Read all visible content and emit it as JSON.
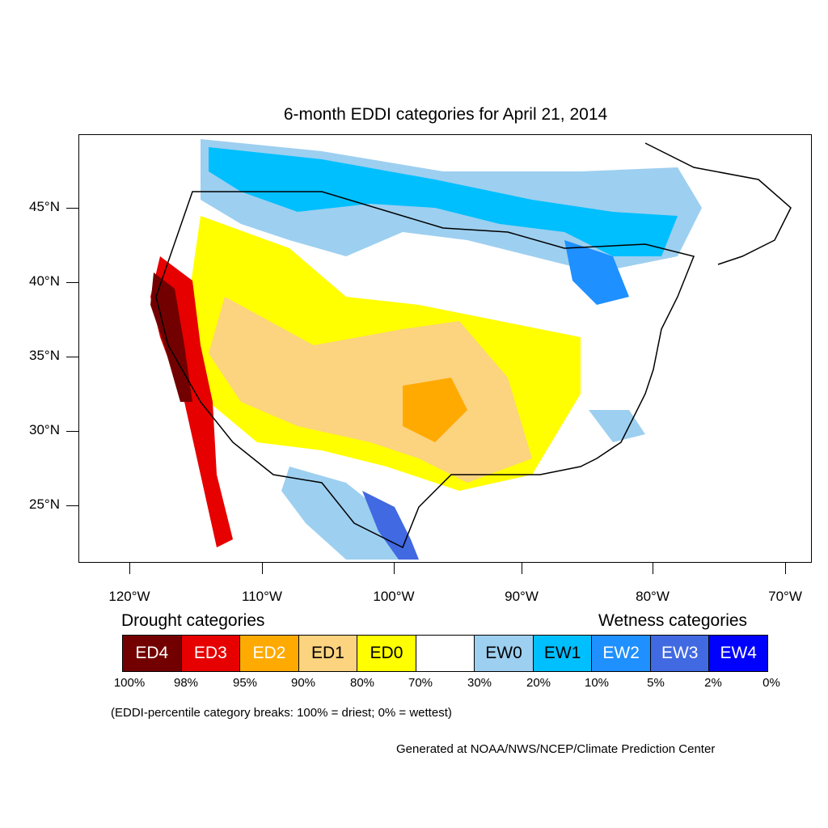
{
  "title": "6-month EDDI categories for April 21, 2014",
  "map": {
    "lat_labels": [
      "45°N",
      "40°N",
      "35°N",
      "30°N",
      "25°N"
    ],
    "lon_labels": [
      "120°W",
      "110°W",
      "100°W",
      "90°W",
      "80°W",
      "70°W"
    ]
  },
  "legend": {
    "drought_heading": "Drought categories",
    "wetness_heading": "Wetness categories",
    "categories": [
      {
        "label": "ED4",
        "color": "#730000",
        "text_color": "#ffffff"
      },
      {
        "label": "ED3",
        "color": "#e60000",
        "text_color": "#ffffff"
      },
      {
        "label": "ED2",
        "color": "#ffaa00",
        "text_color": "#ffffff"
      },
      {
        "label": "ED1",
        "color": "#fcd37f",
        "text_color": "#000000"
      },
      {
        "label": "ED0",
        "color": "#ffff00",
        "text_color": "#000000"
      },
      {
        "label": "",
        "color": "#ffffff",
        "text_color": "#000000"
      },
      {
        "label": "EW0",
        "color": "#9dcff0",
        "text_color": "#000000"
      },
      {
        "label": "EW1",
        "color": "#00bfff",
        "text_color": "#000000"
      },
      {
        "label": "EW2",
        "color": "#1e90ff",
        "text_color": "#ffffff"
      },
      {
        "label": "EW3",
        "color": "#4169e1",
        "text_color": "#ffffff"
      },
      {
        "label": "EW4",
        "color": "#0000ff",
        "text_color": "#ffffff"
      }
    ],
    "percent_breaks": [
      "100%",
      "98%",
      "95%",
      "90%",
      "80%",
      "70%",
      "30%",
      "20%",
      "10%",
      "5%",
      "2%",
      "0%"
    ]
  },
  "note": "(EDDI-percentile category breaks: 100% = driest; 0% = wettest)",
  "credit": "Generated at NOAA/NWS/NCEP/Climate Prediction Center"
}
